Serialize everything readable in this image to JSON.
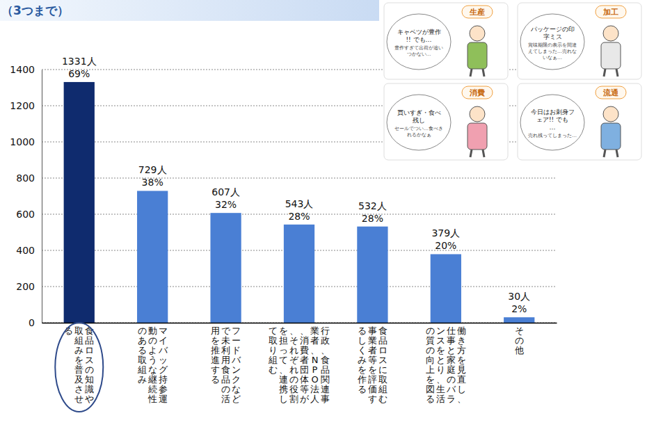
{
  "chart_data": {
    "type": "bar",
    "title": "（3つまで）",
    "categories": [
      "食品ロスの知識や取組みを普及させる",
      "マイバッグ持参運動のような継続性のある取組み",
      "フードバンクなどで未利用食品の活用を推進する",
      "行政、食品関連事業者、NPO法人、消費者団体等が、それぞれの役割を担って、連携して取り組む",
      "食品ロスに取組む事業者等を評価するしくみを作る",
      "働き方を見直し、仕事と家庭のバランスをとり、生活の質の向上を図る",
      "その他"
    ],
    "values": [
      1331,
      729,
      607,
      543,
      532,
      379,
      30
    ],
    "value_labels": [
      "1331人",
      "729人",
      "607人",
      "543人",
      "532人",
      "379人",
      "30人"
    ],
    "percent_labels": [
      "69%",
      "38%",
      "32%",
      "28%",
      "28%",
      "20%",
      "2%"
    ],
    "colors": [
      "#0f2b6e",
      "#4a7fd4",
      "#4a7fd4",
      "#4a7fd4",
      "#4a7fd4",
      "#4a7fd4",
      "#4a7fd4"
    ],
    "ylim": [
      0,
      1400
    ],
    "yticks": [
      0,
      200,
      400,
      600,
      800,
      1000,
      1200,
      1400
    ],
    "grid": true,
    "data_labels": true
  },
  "illustrations": [
    {
      "label": "生産",
      "speech": "キャベツが豊作!! でも…",
      "note": "豊作すぎて出荷が追いつかない…"
    },
    {
      "label": "加工",
      "speech": "パッケージの印字ミス",
      "note": "賞味期限の表示を間違えてしまった…売れないなぁ…"
    },
    {
      "label": "消費",
      "speech": "買いすぎ・食べ残し",
      "note": "セールでつい…食べきれるかなぁ"
    },
    {
      "label": "流通",
      "speech": "今日はお刺身フェア!! でも…",
      "note": "売れ残ってしまった…"
    }
  ]
}
